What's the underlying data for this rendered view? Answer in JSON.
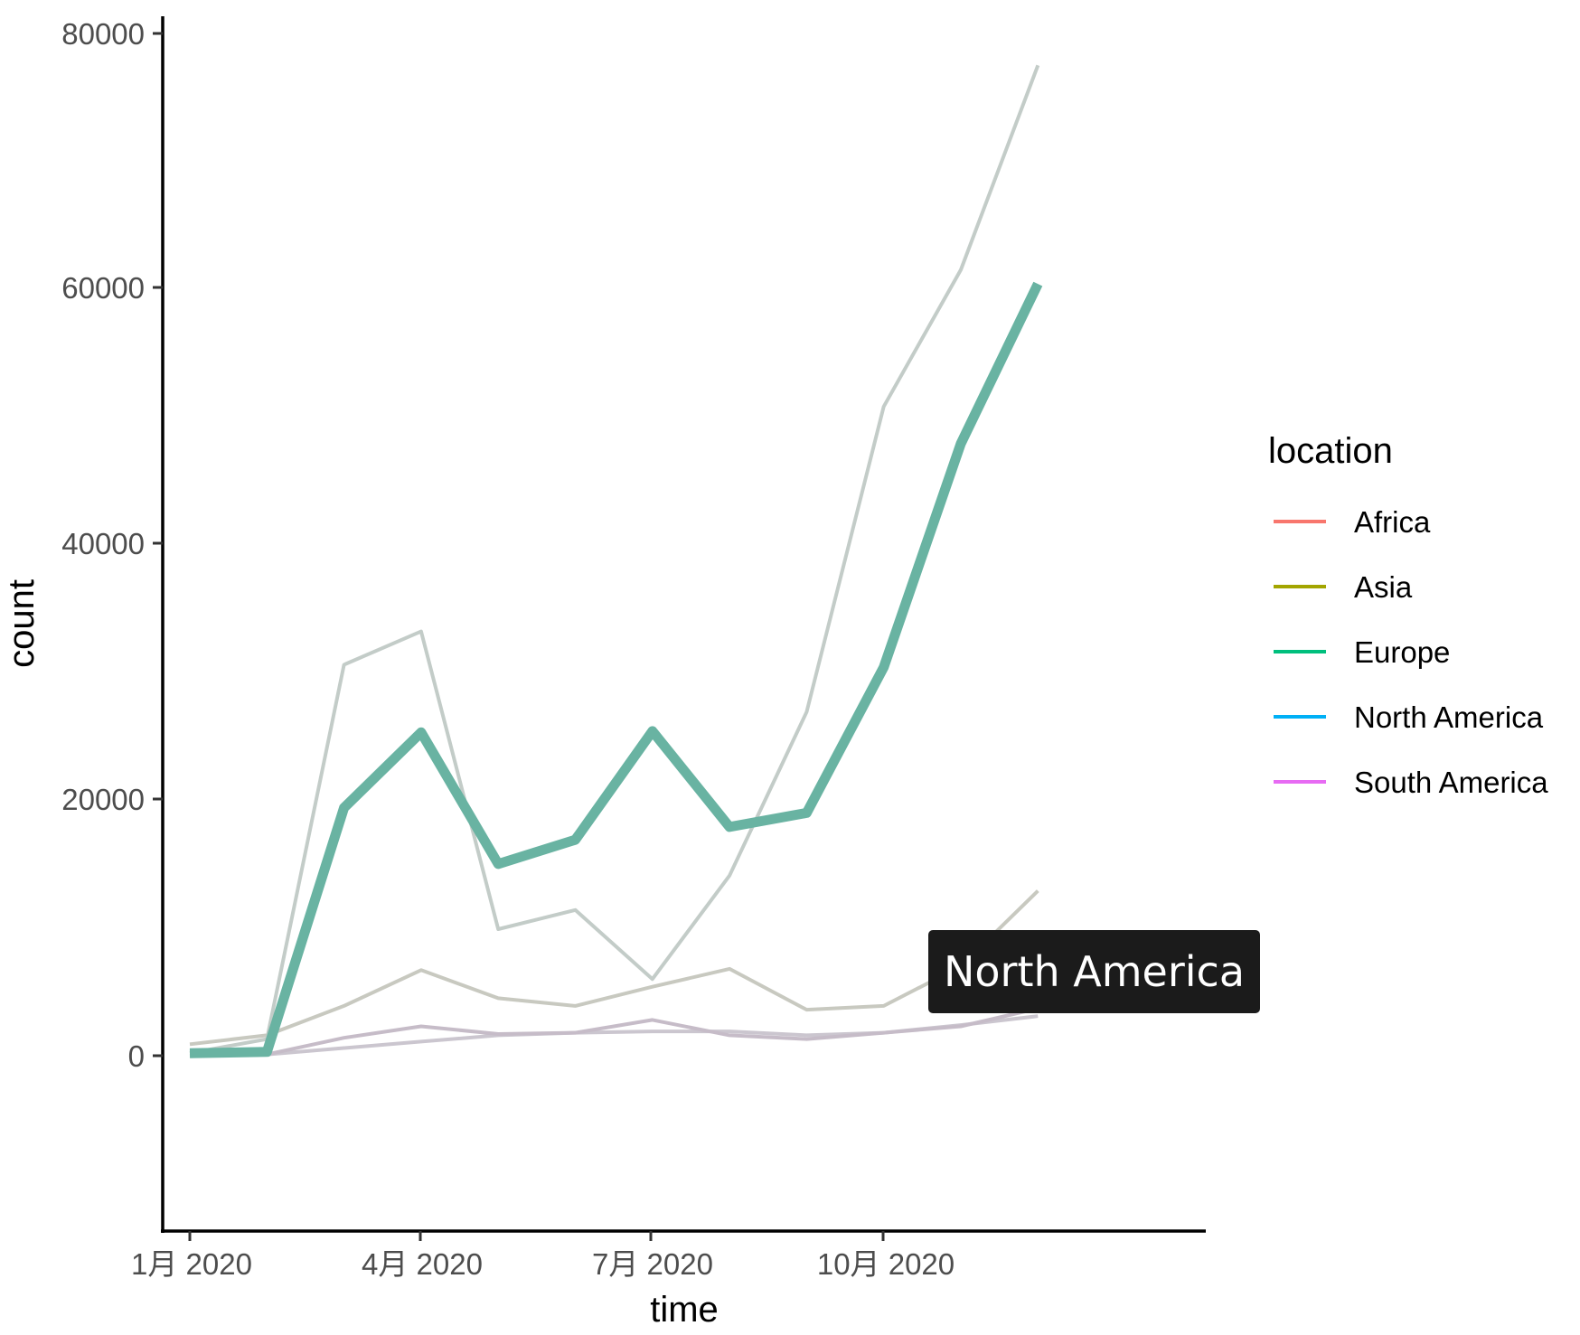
{
  "chart_data": {
    "type": "line",
    "title": "",
    "xlabel": "time",
    "ylabel": "count",
    "ylim": [
      -4000,
      81000
    ],
    "yticks": [
      0,
      20000,
      40000,
      60000,
      80000
    ],
    "ytick_labels": [
      "0",
      "20000",
      "40000",
      "60000",
      "80000"
    ],
    "xtick_labels": [
      "1月 2020",
      "4月 2020",
      "7月 2020",
      "10月 2020"
    ],
    "x": [
      "2020-01",
      "2020-02",
      "2020-03",
      "2020-04",
      "2020-05",
      "2020-06",
      "2020-07",
      "2020-08",
      "2020-09",
      "2020-10",
      "2020-11",
      "2020-12"
    ],
    "grid": false,
    "legend_title": "location",
    "legend_position": "right",
    "highlighted": "North America",
    "series": [
      {
        "name": "Africa",
        "color": "#F8766D",
        "display_color": "#cbc6cf",
        "values": [
          0,
          100,
          600,
          1100,
          1600,
          1800,
          1900,
          1900,
          1600,
          1800,
          2400,
          3100
        ]
      },
      {
        "name": "Asia",
        "color": "#A3A500",
        "display_color": "#c8c9c0",
        "values": [
          900,
          1600,
          3900,
          6700,
          4500,
          3900,
          5400,
          6800,
          3600,
          3900,
          7000,
          12900
        ]
      },
      {
        "name": "Europe",
        "color": "#00BF7D",
        "display_color": "#c3ccc8",
        "values": [
          200,
          1300,
          30600,
          33200,
          9900,
          11400,
          6000,
          14100,
          26900,
          50800,
          61500,
          77500
        ]
      },
      {
        "name": "North America",
        "color": "#00B0F6",
        "display_color": "#69b3a2",
        "values": [
          200,
          300,
          19400,
          25300,
          15000,
          16900,
          25400,
          17900,
          19000,
          30400,
          47900,
          60400
        ]
      },
      {
        "name": "South America",
        "color": "#E76BF3",
        "display_color": "#c6bcc8",
        "values": [
          0,
          100,
          1400,
          2300,
          1700,
          1800,
          2800,
          1600,
          1300,
          1800,
          2300,
          3700
        ]
      }
    ]
  },
  "axes": {
    "x_title": "time",
    "y_title": "count",
    "y_ticks": [
      "0",
      "20000",
      "40000",
      "60000",
      "80000"
    ],
    "x_ticks": [
      "1月 2020",
      "4月 2020",
      "7月 2020",
      "10月 2020"
    ]
  },
  "legend": {
    "title": "location",
    "items": [
      {
        "label": "Africa",
        "color": "#F8766D"
      },
      {
        "label": "Asia",
        "color": "#A3A500"
      },
      {
        "label": "Europe",
        "color": "#00BF7D"
      },
      {
        "label": "North America",
        "color": "#00B0F6"
      },
      {
        "label": "South America",
        "color": "#E76BF3"
      }
    ]
  },
  "tooltip": {
    "text": "North America"
  }
}
